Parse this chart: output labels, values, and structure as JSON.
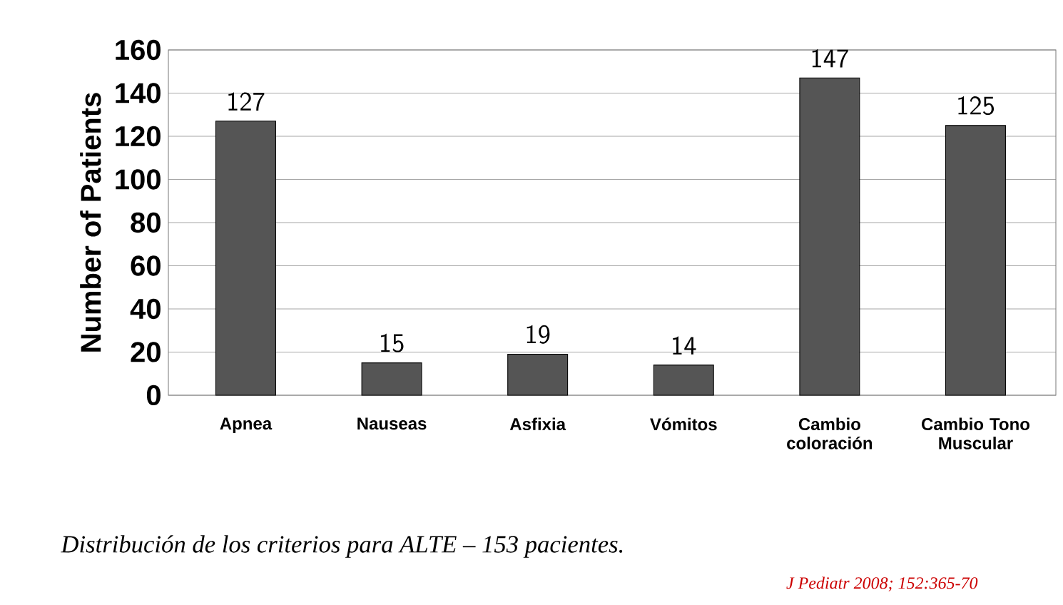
{
  "chart_data": {
    "type": "bar",
    "ylabel": "Number of Patients",
    "categories": [
      "Apnea",
      "Nauseas",
      "Asfixia",
      "Vómitos",
      "Cambio coloración",
      "Cambio Tono Muscular"
    ],
    "values": [
      127,
      15,
      19,
      14,
      147,
      125
    ],
    "color": "#555555",
    "ylim": [
      0,
      160
    ],
    "yticks": [
      0,
      20,
      40,
      60,
      80,
      100,
      120,
      140,
      160
    ],
    "grid": "y",
    "data_labels": true,
    "annotations": [
      "*Distribución de los criterios para ALTE – 153 pacientes.*",
      "J Pediatr 2008; 152:365-70"
    ]
  }
}
